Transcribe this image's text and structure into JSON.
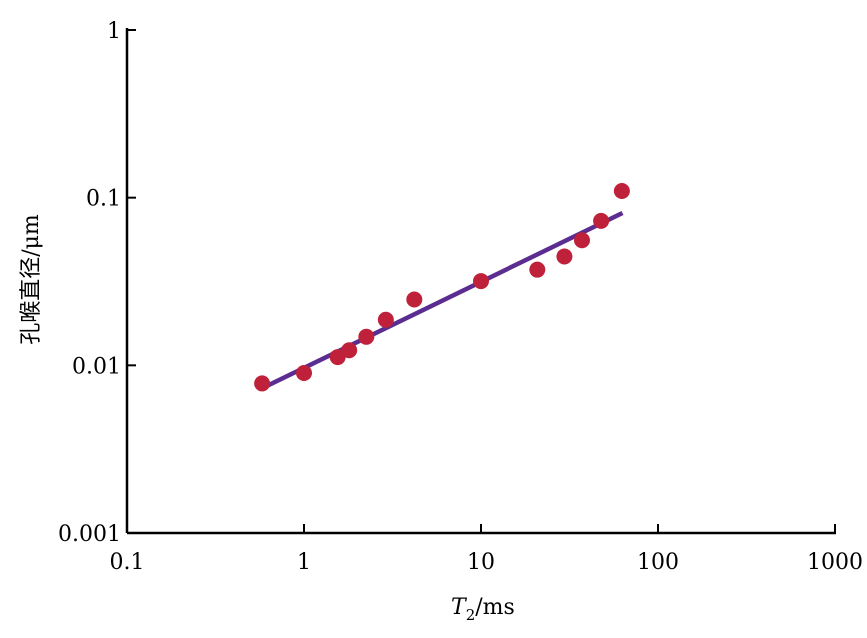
{
  "chart_data": {
    "type": "scatter",
    "xscale": "log",
    "yscale": "log",
    "xlim": [
      0.1,
      1000
    ],
    "ylim": [
      0.001,
      1
    ],
    "x_ticks": [
      0.1,
      1,
      10,
      100,
      1000
    ],
    "x_tick_labels": [
      "0.1",
      "1",
      "10",
      "100",
      "1000"
    ],
    "y_ticks": [
      0.001,
      0.01,
      0.1,
      1
    ],
    "y_tick_labels": [
      "0.001",
      "0.01",
      "0.1",
      "1"
    ],
    "xlabel": {
      "main": "T",
      "sub": "2",
      "unit": "/ms"
    },
    "ylabel": "孔喉直径/μm",
    "grid": false,
    "colors": {
      "points": "#c0213a",
      "fit_line": "#5b2d91",
      "axis": "#000000"
    },
    "points": [
      {
        "x": 0.58,
        "y": 0.0078
      },
      {
        "x": 1.0,
        "y": 0.009
      },
      {
        "x": 1.55,
        "y": 0.0112
      },
      {
        "x": 1.8,
        "y": 0.0123
      },
      {
        "x": 2.25,
        "y": 0.0148
      },
      {
        "x": 2.9,
        "y": 0.0187
      },
      {
        "x": 4.2,
        "y": 0.0247
      },
      {
        "x": 10.0,
        "y": 0.0318
      },
      {
        "x": 20.8,
        "y": 0.0372
      },
      {
        "x": 29.6,
        "y": 0.0446
      },
      {
        "x": 37.2,
        "y": 0.0557
      },
      {
        "x": 47.7,
        "y": 0.0727
      },
      {
        "x": 62.5,
        "y": 0.1096
      }
    ],
    "fit_line": {
      "x": [
        0.58,
        63
      ],
      "y": [
        0.0073,
        0.081
      ]
    }
  }
}
